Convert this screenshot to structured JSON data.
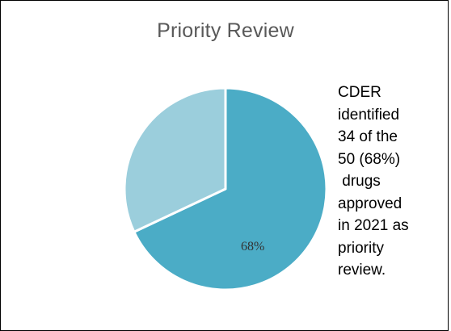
{
  "chart_data": {
    "type": "pie",
    "title": "Priority Review",
    "slices": [
      {
        "value": 68,
        "label": "68%",
        "color": "#4bacc6"
      },
      {
        "value": 32,
        "label": "",
        "color": "#9bcedc"
      }
    ],
    "legend": "none"
  },
  "annotation": {
    "lines": [
      "CDER",
      "identified",
      "34 of the",
      "50 (68%)",
      " drugs",
      "approved",
      "in 2021 as",
      "priority",
      "review."
    ]
  }
}
